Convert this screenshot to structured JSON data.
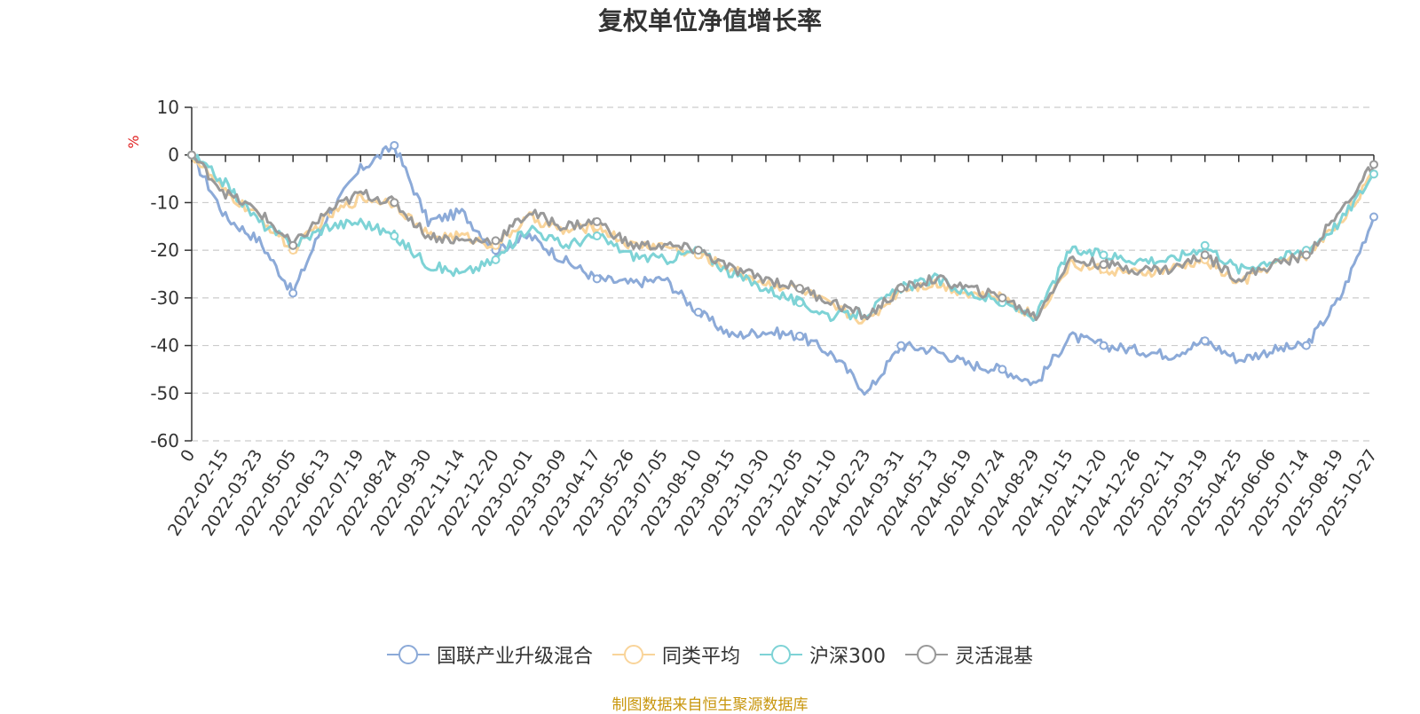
{
  "chart_data": {
    "type": "line",
    "title": "复权单位净值增长率",
    "ylabel": "%",
    "ylim": [
      -60,
      10
    ],
    "yticks": [
      10,
      0,
      -10,
      -20,
      -30,
      -40,
      -50,
      -60
    ],
    "grid": true,
    "legend_position": "bottom",
    "categories": [
      "0",
      "2022-02-15",
      "2022-03-23",
      "2022-05-05",
      "2022-06-13",
      "2022-07-19",
      "2022-08-24",
      "2022-09-30",
      "2022-11-14",
      "2022-12-20",
      "2023-02-01",
      "2023-03-09",
      "2023-04-17",
      "2023-05-26",
      "2023-07-05",
      "2023-08-10",
      "2023-09-15",
      "2023-10-30",
      "2023-12-05",
      "2024-01-10",
      "2024-02-23",
      "2024-03-31",
      "2024-05-13",
      "2024-06-19",
      "2024-07-24",
      "2024-08-29",
      "2024-10-15",
      "2024-11-20",
      "2024-12-26",
      "2025-02-11",
      "2025-03-19",
      "2025-04-25",
      "2025-06-06",
      "2025-07-14",
      "2025-08-19",
      "2025-10-27"
    ],
    "series": [
      {
        "name": "国联产业升级混合",
        "color": "#8caad8",
        "values": [
          0,
          -13,
          -18,
          -29,
          -13,
          -3,
          2,
          -14,
          -12,
          -20,
          -17,
          -22,
          -26,
          -27,
          -26,
          -33,
          -38,
          -37,
          -38,
          -42,
          -50,
          -40,
          -41,
          -44,
          -45,
          -48,
          -38,
          -40,
          -41,
          -42,
          -39,
          -43,
          -41,
          -40,
          -30,
          -13
        ]
      },
      {
        "name": "同类平均",
        "color": "#f9d49a",
        "values": [
          0,
          -8,
          -13,
          -20,
          -13,
          -9,
          -10,
          -17,
          -17,
          -19,
          -13,
          -16,
          -15,
          -19,
          -19,
          -21,
          -24,
          -27,
          -28,
          -32,
          -35,
          -28,
          -27,
          -29,
          -30,
          -34,
          -23,
          -24,
          -25,
          -24,
          -22,
          -27,
          -23,
          -21,
          -14,
          -4
        ]
      },
      {
        "name": "沪深300",
        "color": "#7ed3d6",
        "values": [
          0,
          -6,
          -14,
          -19,
          -15,
          -14,
          -17,
          -23,
          -25,
          -22,
          -15,
          -19,
          -17,
          -21,
          -22,
          -20,
          -25,
          -28,
          -31,
          -34,
          -33,
          -28,
          -26,
          -29,
          -31,
          -34,
          -20,
          -21,
          -22,
          -22,
          -19,
          -24,
          -22,
          -20,
          -14,
          -4
        ]
      },
      {
        "name": "灵活混基",
        "color": "#999999",
        "values": [
          0,
          -8,
          -12,
          -19,
          -12,
          -8,
          -10,
          -17,
          -18,
          -18,
          -12,
          -15,
          -14,
          -19,
          -19,
          -20,
          -24,
          -26,
          -28,
          -31,
          -34,
          -28,
          -26,
          -28,
          -30,
          -34,
          -22,
          -23,
          -24,
          -24,
          -21,
          -26,
          -23,
          -21,
          -12,
          -2
        ]
      }
    ]
  },
  "legend": {
    "items": [
      "国联产业升级混合",
      "同类平均",
      "沪深300",
      "灵活混基"
    ]
  },
  "footer": "制图数据来自恒生聚源数据库"
}
